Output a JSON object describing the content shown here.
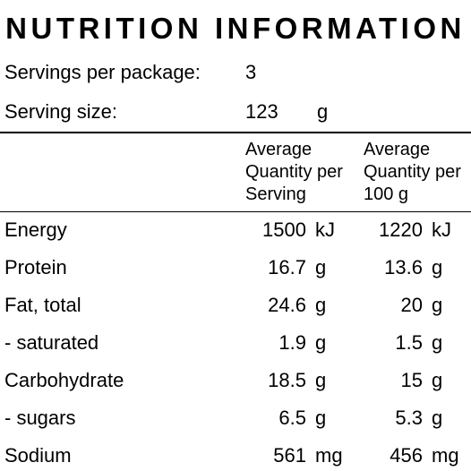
{
  "panel": {
    "title": "NUTRITION INFORMATION",
    "servings_label": "Servings per package:",
    "servings_value": "3",
    "serving_size_label": "Serving size:",
    "serving_size_value": "123",
    "serving_size_unit": "g"
  },
  "columns": {
    "per_serving": [
      "Average",
      "Quantity per",
      "Serving"
    ],
    "per_100g": [
      "Average",
      "Quantity per",
      "100 g"
    ]
  },
  "rows": [
    {
      "name": "Energy",
      "serving": "1500",
      "serving_unit": "kJ",
      "per100": "1220",
      "per100_unit": "kJ"
    },
    {
      "name": "Protein",
      "serving": "16.7",
      "serving_unit": "g",
      "per100": "13.6",
      "per100_unit": "g"
    },
    {
      "name": "Fat, total",
      "serving": "24.6",
      "serving_unit": "g",
      "per100": "20",
      "per100_unit": "g"
    },
    {
      "name": "- saturated",
      "serving": "1.9",
      "serving_unit": "g",
      "per100": "1.5",
      "per100_unit": "g"
    },
    {
      "name": "Carbohydrate",
      "serving": "18.5",
      "serving_unit": "g",
      "per100": "15",
      "per100_unit": "g"
    },
    {
      "name": "- sugars",
      "serving": "6.5",
      "serving_unit": "g",
      "per100": "5.3",
      "per100_unit": "g"
    },
    {
      "name": "Sodium",
      "serving": "561",
      "serving_unit": "mg",
      "per100": "456",
      "per100_unit": "mg"
    }
  ]
}
